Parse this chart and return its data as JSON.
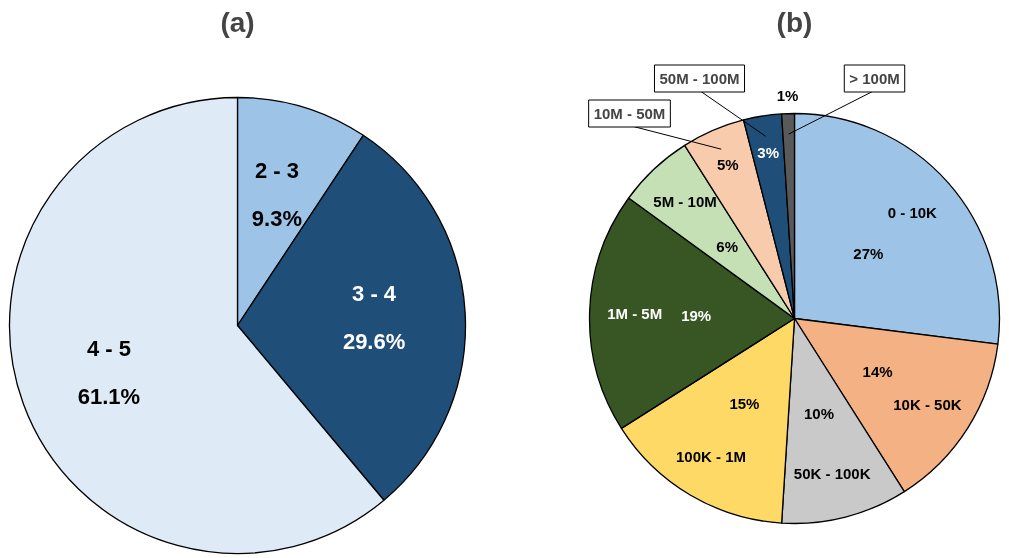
{
  "chart_data": [
    {
      "type": "pie",
      "title": "(a)",
      "categories": [
        "2 - 3",
        "3 - 4",
        "4 - 5"
      ],
      "values": [
        9.3,
        29.6,
        61.1
      ],
      "colors": [
        "#9dc3e6",
        "#1f4e79",
        "#deebf7"
      ],
      "data_labels": true,
      "value_labels": [
        "9.3%",
        "29.6%",
        "61.1%"
      ]
    },
    {
      "type": "pie",
      "title": "(b)",
      "categories": [
        "0 -  10K",
        "10K -  50K",
        "50K -  100K",
        "100K -  1M",
        "1M - 5M",
        "5M - 10M",
        "10M - 50M",
        "50M - 100M",
        "> 100M"
      ],
      "values": [
        27,
        14,
        10,
        15,
        19,
        6,
        5,
        3,
        1
      ],
      "colors": [
        "#9dc3e6",
        "#f4b183",
        "#c9c9c9",
        "#ffd966",
        "#375623",
        "#c5e0b4",
        "#f8cbad",
        "#1f4e79",
        "#595959"
      ],
      "data_labels": true,
      "value_labels": [
        "27%",
        "14%",
        "10%",
        "15%",
        "19%",
        "6%",
        "5%",
        "3%",
        "1%"
      ]
    }
  ]
}
